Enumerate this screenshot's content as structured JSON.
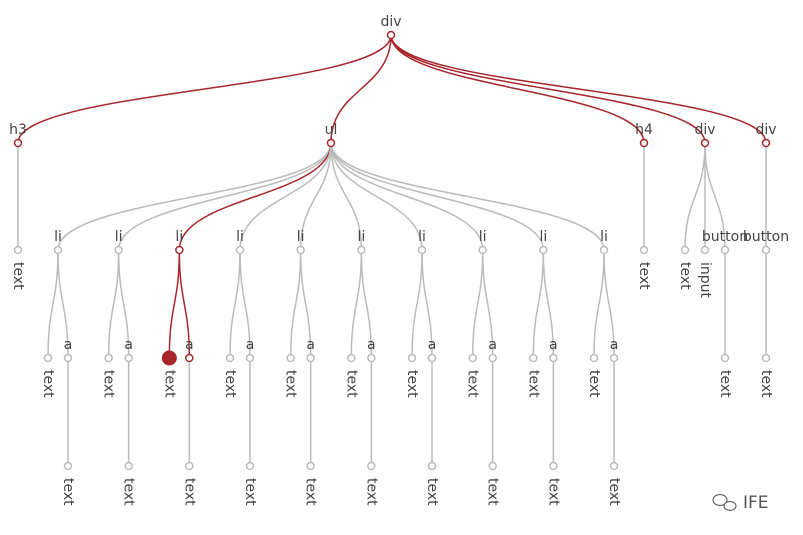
{
  "tree": {
    "label": "div",
    "highlighted": true,
    "children": [
      {
        "label": "h3",
        "highlighted": true,
        "children": [
          {
            "label": "text"
          }
        ]
      },
      {
        "label": "ul",
        "highlighted": true,
        "children": [
          {
            "label": "li",
            "children": [
              {
                "label": "text"
              },
              {
                "label": "a",
                "children": [
                  {
                    "label": "text"
                  }
                ]
              }
            ]
          },
          {
            "label": "li",
            "children": [
              {
                "label": "text"
              },
              {
                "label": "a",
                "children": [
                  {
                    "label": "text"
                  }
                ]
              }
            ]
          },
          {
            "label": "li",
            "highlighted": true,
            "children": [
              {
                "label": "text",
                "selected": true
              },
              {
                "label": "a",
                "highlighted": true,
                "children": [
                  {
                    "label": "text"
                  }
                ]
              }
            ]
          },
          {
            "label": "li",
            "children": [
              {
                "label": "text"
              },
              {
                "label": "a",
                "children": [
                  {
                    "label": "text"
                  }
                ]
              }
            ]
          },
          {
            "label": "li",
            "children": [
              {
                "label": "text"
              },
              {
                "label": "a",
                "children": [
                  {
                    "label": "text"
                  }
                ]
              }
            ]
          },
          {
            "label": "li",
            "children": [
              {
                "label": "text"
              },
              {
                "label": "a",
                "children": [
                  {
                    "label": "text"
                  }
                ]
              }
            ]
          },
          {
            "label": "li",
            "children": [
              {
                "label": "text"
              },
              {
                "label": "a",
                "children": [
                  {
                    "label": "text"
                  }
                ]
              }
            ]
          },
          {
            "label": "li",
            "children": [
              {
                "label": "text"
              },
              {
                "label": "a",
                "children": [
                  {
                    "label": "text"
                  }
                ]
              }
            ]
          },
          {
            "label": "li",
            "children": [
              {
                "label": "text"
              },
              {
                "label": "a",
                "children": [
                  {
                    "label": "text"
                  }
                ]
              }
            ]
          },
          {
            "label": "li",
            "children": [
              {
                "label": "text"
              },
              {
                "label": "a",
                "children": [
                  {
                    "label": "text"
                  }
                ]
              }
            ]
          }
        ]
      },
      {
        "label": "h4",
        "highlighted": true,
        "children": [
          {
            "label": "text"
          }
        ]
      },
      {
        "label": "div",
        "highlighted": true,
        "children": [
          {
            "label": "text"
          },
          {
            "label": "input"
          },
          {
            "label": "button",
            "children": [
              {
                "label": "text"
              }
            ]
          }
        ]
      },
      {
        "label": "div",
        "highlighted": true,
        "children": [
          {
            "label": "button",
            "children": [
              {
                "label": "text"
              }
            ]
          }
        ]
      }
    ]
  },
  "watermark": "IFE"
}
